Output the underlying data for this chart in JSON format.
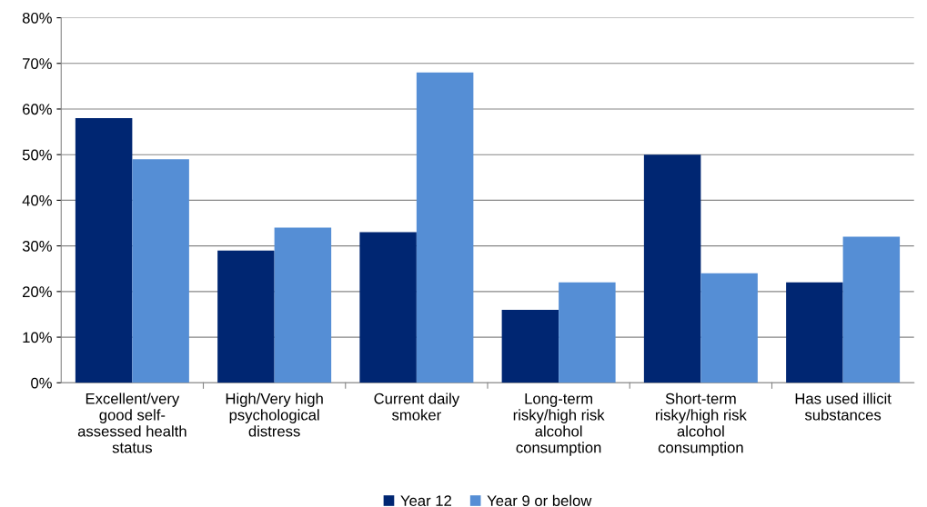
{
  "chart_data": {
    "type": "bar",
    "categories": [
      "Excellent/very\ngood self-\nassessed health\nstatus",
      "High/Very high\npsychological\ndistress",
      "Current daily\nsmoker",
      "Long-term\nrisky/high risk\nalcohol\nconsumption",
      "Short-term\nrisky/high risk\nalcohol\nconsumption",
      "Has used illicit\nsubstances"
    ],
    "series": [
      {
        "name": "Year 12",
        "color": "#002672",
        "values": [
          58,
          29,
          33,
          16,
          50,
          22
        ]
      },
      {
        "name": "Year 9 or below",
        "color": "#558ed5",
        "values": [
          49,
          34,
          68,
          22,
          24,
          32
        ]
      }
    ],
    "ylim": [
      0,
      80
    ],
    "yticks": [
      {
        "value": 0,
        "label": "0%"
      },
      {
        "value": 10,
        "label": "10%"
      },
      {
        "value": 20,
        "label": "20%"
      },
      {
        "value": 30,
        "label": "30%"
      },
      {
        "value": 40,
        "label": "40%"
      },
      {
        "value": 50,
        "label": "50%"
      },
      {
        "value": 60,
        "label": "60%"
      },
      {
        "value": 70,
        "label": "70%"
      },
      {
        "value": 80,
        "label": "80%"
      }
    ],
    "grid": "y",
    "legend": "bottom"
  }
}
